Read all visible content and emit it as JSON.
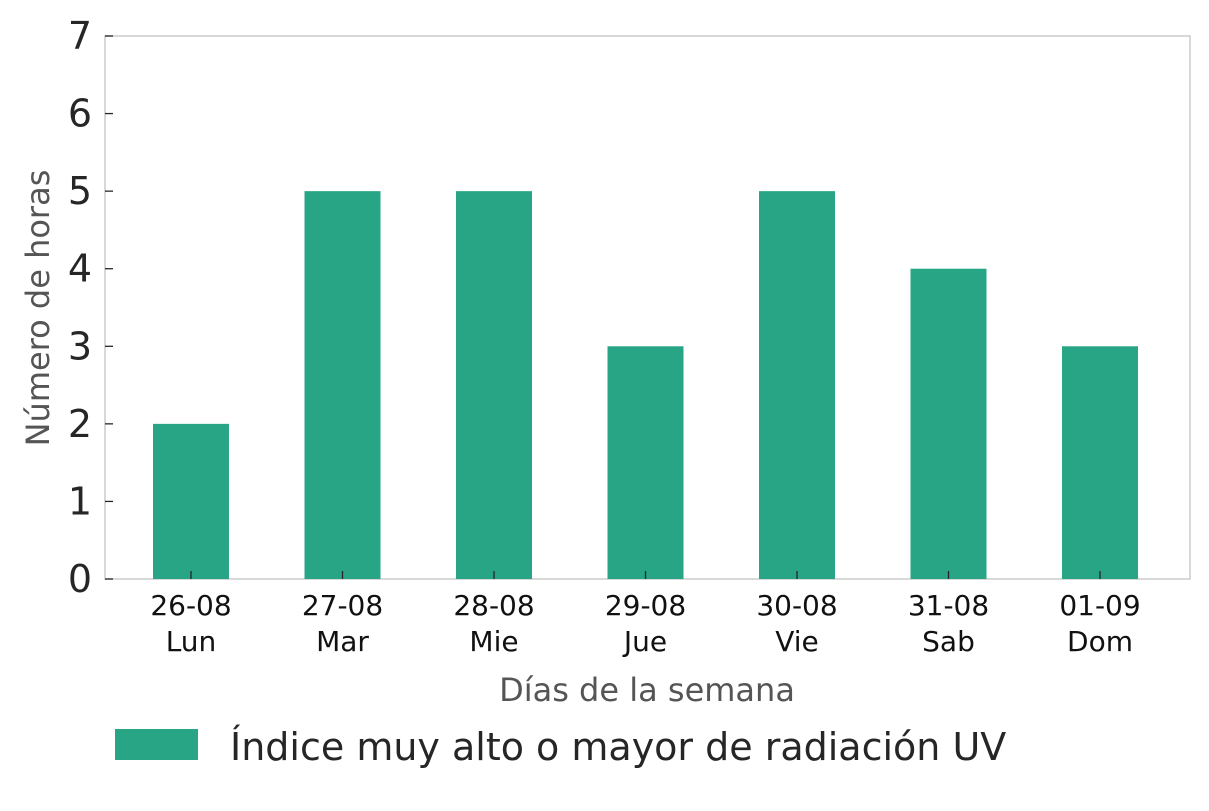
{
  "chart_data": {
    "type": "bar",
    "categories": [
      [
        "26-08",
        "Lun"
      ],
      [
        "27-08",
        "Mar"
      ],
      [
        "28-08",
        "Mie"
      ],
      [
        "29-08",
        "Jue"
      ],
      [
        "30-08",
        "Vie"
      ],
      [
        "31-08",
        "Sab"
      ],
      [
        "01-09",
        "Dom"
      ]
    ],
    "series": [
      {
        "name": "Índice muy alto o mayor de radiación UV",
        "values": [
          2,
          5,
          5,
          3,
          5,
          4,
          3
        ],
        "color": "#27a585"
      }
    ],
    "title": "",
    "xlabel": "Días de la semana",
    "ylabel": "Número de horas",
    "ylim": [
      0,
      7
    ],
    "yticks": [
      0,
      1,
      2,
      3,
      4,
      5,
      6,
      7
    ],
    "grid": false,
    "legend_position": "bottom"
  },
  "colors": {
    "bar": "#27a585",
    "axis_frame": "#cccccc",
    "tick_text": "#262626",
    "axis_label_text": "#555555"
  }
}
